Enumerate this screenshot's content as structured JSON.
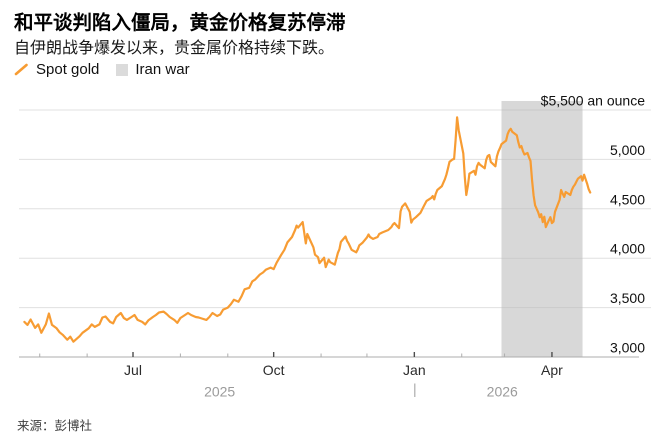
{
  "header": {
    "title": "和平谈判陷入僵局，黄金价格复苏停滞",
    "subtitle": "自伊朗战争爆发以来，贵金属价格持续下跌。"
  },
  "legend": {
    "spot_gold": "Spot gold",
    "iran_war": "Iran war"
  },
  "source": "来源：彭博社",
  "colors": {
    "spot_gold": "#F79C33",
    "iran_war_band": "#D8D8D8",
    "legend_square": "#DBDBDB",
    "grid": "#E0E0E0",
    "grid_on_band": "#C9C9C9",
    "axis": "#ACACAC",
    "tick_major": "#4D4D4D",
    "tick_minor": "#AEAEAE",
    "tick_label": "#111111",
    "month_label": "#2B2B2B",
    "year_label": "#9B9B9B"
  },
  "chart_data": {
    "type": "line",
    "title": "和平谈判陷入僵局，黄金价格复苏停滞",
    "subtitle": "自伊朗战争爆发以来，贵金属价格持续下跌。",
    "ylabel": "$5,500 an ounce",
    "y_range": [
      3000,
      5500
    ],
    "grid": true,
    "legend_position": "top-left",
    "y_ticks": [
      {
        "value": 5500,
        "label": "$5,500 an ounce"
      },
      {
        "value": 5000,
        "label": "5,000"
      },
      {
        "value": 4500,
        "label": "4,500"
      },
      {
        "value": 4000,
        "label": "4,000"
      },
      {
        "value": 3500,
        "label": "3,500"
      },
      {
        "value": 3000,
        "label": "3,000"
      }
    ],
    "x_major_ticks": [
      {
        "date": "2025-07-01",
        "label": "Jul"
      },
      {
        "date": "2025-10-01",
        "label": "Oct"
      },
      {
        "date": "2026-01-01",
        "label": "Jan"
      },
      {
        "date": "2026-04-01",
        "label": "Apr"
      }
    ],
    "x_minor_tick_dates": [
      "2025-05-01",
      "2025-06-01",
      "2025-08-01",
      "2025-09-01",
      "2025-11-01",
      "2025-12-01",
      "2026-02-01",
      "2026-03-01"
    ],
    "year_labels": [
      {
        "label": "2025",
        "divider": false
      },
      {
        "label": "2026",
        "divider": true
      }
    ],
    "band": {
      "name": "Iran war",
      "start": "2026-02-27",
      "end": "2026-04-21"
    },
    "series": [
      {
        "name": "Spot gold",
        "unit": "USD per ounce",
        "points": [
          [
            "2025-04-21",
            3355
          ],
          [
            "2025-04-23",
            3325
          ],
          [
            "2025-04-25",
            3380
          ],
          [
            "2025-04-28",
            3295
          ],
          [
            "2025-04-30",
            3330
          ],
          [
            "2025-05-02",
            3245
          ],
          [
            "2025-05-05",
            3330
          ],
          [
            "2025-05-07",
            3440
          ],
          [
            "2025-05-09",
            3325
          ],
          [
            "2025-05-12",
            3290
          ],
          [
            "2025-05-14",
            3250
          ],
          [
            "2025-05-16",
            3225
          ],
          [
            "2025-05-19",
            3175
          ],
          [
            "2025-05-21",
            3205
          ],
          [
            "2025-05-23",
            3155
          ],
          [
            "2025-05-27",
            3210
          ],
          [
            "2025-05-29",
            3245
          ],
          [
            "2025-06-02",
            3290
          ],
          [
            "2025-06-04",
            3330
          ],
          [
            "2025-06-06",
            3305
          ],
          [
            "2025-06-09",
            3330
          ],
          [
            "2025-06-11",
            3400
          ],
          [
            "2025-06-13",
            3410
          ],
          [
            "2025-06-16",
            3355
          ],
          [
            "2025-06-18",
            3340
          ],
          [
            "2025-06-20",
            3405
          ],
          [
            "2025-06-23",
            3445
          ],
          [
            "2025-06-25",
            3395
          ],
          [
            "2025-06-27",
            3375
          ],
          [
            "2025-06-30",
            3405
          ],
          [
            "2025-07-02",
            3425
          ],
          [
            "2025-07-04",
            3375
          ],
          [
            "2025-07-07",
            3355
          ],
          [
            "2025-07-09",
            3330
          ],
          [
            "2025-07-11",
            3370
          ],
          [
            "2025-07-14",
            3405
          ],
          [
            "2025-07-16",
            3425
          ],
          [
            "2025-07-18",
            3450
          ],
          [
            "2025-07-21",
            3460
          ],
          [
            "2025-07-23",
            3435
          ],
          [
            "2025-07-25",
            3405
          ],
          [
            "2025-07-28",
            3375
          ],
          [
            "2025-07-30",
            3345
          ],
          [
            "2025-08-01",
            3395
          ],
          [
            "2025-08-04",
            3425
          ],
          [
            "2025-08-06",
            3445
          ],
          [
            "2025-08-08",
            3425
          ],
          [
            "2025-08-11",
            3405
          ],
          [
            "2025-08-13",
            3400
          ],
          [
            "2025-08-15",
            3390
          ],
          [
            "2025-08-18",
            3375
          ],
          [
            "2025-08-20",
            3405
          ],
          [
            "2025-08-22",
            3445
          ],
          [
            "2025-08-25",
            3415
          ],
          [
            "2025-08-27",
            3430
          ],
          [
            "2025-08-29",
            3480
          ],
          [
            "2025-09-01",
            3500
          ],
          [
            "2025-09-03",
            3535
          ],
          [
            "2025-09-05",
            3580
          ],
          [
            "2025-09-08",
            3560
          ],
          [
            "2025-09-10",
            3615
          ],
          [
            "2025-09-12",
            3685
          ],
          [
            "2025-09-15",
            3700
          ],
          [
            "2025-09-17",
            3765
          ],
          [
            "2025-09-19",
            3785
          ],
          [
            "2025-09-22",
            3835
          ],
          [
            "2025-09-24",
            3855
          ],
          [
            "2025-09-26",
            3885
          ],
          [
            "2025-09-29",
            3905
          ],
          [
            "2025-10-01",
            3890
          ],
          [
            "2025-10-03",
            3955
          ],
          [
            "2025-10-06",
            4035
          ],
          [
            "2025-10-08",
            4085
          ],
          [
            "2025-10-10",
            4160
          ],
          [
            "2025-10-13",
            4215
          ],
          [
            "2025-10-15",
            4285
          ],
          [
            "2025-10-16",
            4330
          ],
          [
            "2025-10-17",
            4310
          ],
          [
            "2025-10-20",
            4365
          ],
          [
            "2025-10-22",
            4150
          ],
          [
            "2025-10-23",
            4245
          ],
          [
            "2025-10-27",
            4110
          ],
          [
            "2025-10-28",
            4035
          ],
          [
            "2025-10-30",
            4010
          ],
          [
            "2025-10-31",
            3950
          ],
          [
            "2025-11-03",
            4005
          ],
          [
            "2025-11-04",
            3910
          ],
          [
            "2025-11-06",
            3985
          ],
          [
            "2025-11-07",
            3960
          ],
          [
            "2025-11-10",
            3935
          ],
          [
            "2025-11-12",
            4055
          ],
          [
            "2025-11-13",
            4090
          ],
          [
            "2025-11-14",
            4165
          ],
          [
            "2025-11-17",
            4220
          ],
          [
            "2025-11-18",
            4175
          ],
          [
            "2025-11-19",
            4150
          ],
          [
            "2025-11-21",
            4085
          ],
          [
            "2025-11-24",
            4060
          ],
          [
            "2025-11-25",
            4090
          ],
          [
            "2025-11-26",
            4130
          ],
          [
            "2025-11-28",
            4155
          ],
          [
            "2025-12-01",
            4210
          ],
          [
            "2025-12-02",
            4240
          ],
          [
            "2025-12-03",
            4215
          ],
          [
            "2025-12-05",
            4195
          ],
          [
            "2025-12-08",
            4215
          ],
          [
            "2025-12-09",
            4245
          ],
          [
            "2025-12-11",
            4260
          ],
          [
            "2025-12-15",
            4285
          ],
          [
            "2025-12-17",
            4315
          ],
          [
            "2025-12-18",
            4340
          ],
          [
            "2025-12-19",
            4355
          ],
          [
            "2025-12-22",
            4305
          ],
          [
            "2025-12-23",
            4475
          ],
          [
            "2025-12-24",
            4520
          ],
          [
            "2025-12-26",
            4555
          ],
          [
            "2025-12-29",
            4470
          ],
          [
            "2025-12-30",
            4360
          ],
          [
            "2025-12-31",
            4390
          ],
          [
            "2026-01-02",
            4415
          ],
          [
            "2026-01-05",
            4460
          ],
          [
            "2026-01-06",
            4490
          ],
          [
            "2026-01-07",
            4520
          ],
          [
            "2026-01-08",
            4550
          ],
          [
            "2026-01-09",
            4580
          ],
          [
            "2026-01-12",
            4610
          ],
          [
            "2026-01-13",
            4630
          ],
          [
            "2026-01-14",
            4595
          ],
          [
            "2026-01-15",
            4650
          ],
          [
            "2026-01-16",
            4690
          ],
          [
            "2026-01-19",
            4730
          ],
          [
            "2026-01-20",
            4765
          ],
          [
            "2026-01-21",
            4800
          ],
          [
            "2026-01-22",
            4845
          ],
          [
            "2026-01-23",
            4910
          ],
          [
            "2026-01-24",
            4975
          ],
          [
            "2026-01-26",
            5000
          ],
          [
            "2026-01-27",
            5005
          ],
          [
            "2026-01-28",
            5195
          ],
          [
            "2026-01-29",
            5425
          ],
          [
            "2026-01-30",
            5295
          ],
          [
            "2026-02-02",
            5060
          ],
          [
            "2026-02-03",
            4820
          ],
          [
            "2026-02-04",
            4640
          ],
          [
            "2026-02-05",
            4735
          ],
          [
            "2026-02-06",
            4855
          ],
          [
            "2026-02-09",
            4885
          ],
          [
            "2026-02-10",
            4845
          ],
          [
            "2026-02-11",
            4930
          ],
          [
            "2026-02-12",
            4965
          ],
          [
            "2026-02-13",
            4945
          ],
          [
            "2026-02-16",
            4910
          ],
          [
            "2026-02-17",
            4995
          ],
          [
            "2026-02-18",
            5035
          ],
          [
            "2026-02-19",
            5045
          ],
          [
            "2026-02-20",
            4975
          ],
          [
            "2026-02-23",
            4930
          ],
          [
            "2026-02-24",
            5030
          ],
          [
            "2026-02-25",
            5080
          ],
          [
            "2026-02-26",
            5115
          ],
          [
            "2026-02-27",
            5155
          ],
          [
            "2026-03-02",
            5190
          ],
          [
            "2026-03-03",
            5255
          ],
          [
            "2026-03-04",
            5290
          ],
          [
            "2026-03-05",
            5310
          ],
          [
            "2026-03-06",
            5280
          ],
          [
            "2026-03-09",
            5245
          ],
          [
            "2026-03-10",
            5175
          ],
          [
            "2026-03-11",
            5120
          ],
          [
            "2026-03-12",
            5135
          ],
          [
            "2026-03-13",
            5085
          ],
          [
            "2026-03-14",
            5050
          ],
          [
            "2026-03-16",
            5065
          ],
          [
            "2026-03-17",
            5020
          ],
          [
            "2026-03-18",
            4985
          ],
          [
            "2026-03-19",
            4785
          ],
          [
            "2026-03-20",
            4635
          ],
          [
            "2026-03-21",
            4535
          ],
          [
            "2026-03-23",
            4465
          ],
          [
            "2026-03-24",
            4415
          ],
          [
            "2026-03-25",
            4445
          ],
          [
            "2026-03-26",
            4365
          ],
          [
            "2026-03-27",
            4420
          ],
          [
            "2026-03-28",
            4315
          ],
          [
            "2026-03-30",
            4385
          ],
          [
            "2026-03-31",
            4415
          ],
          [
            "2026-04-01",
            4355
          ],
          [
            "2026-04-02",
            4370
          ],
          [
            "2026-04-03",
            4470
          ],
          [
            "2026-04-06",
            4590
          ],
          [
            "2026-04-07",
            4690
          ],
          [
            "2026-04-08",
            4655
          ],
          [
            "2026-04-09",
            4620
          ],
          [
            "2026-04-10",
            4670
          ],
          [
            "2026-04-13",
            4640
          ],
          [
            "2026-04-14",
            4690
          ],
          [
            "2026-04-15",
            4725
          ],
          [
            "2026-04-16",
            4745
          ],
          [
            "2026-04-17",
            4775
          ],
          [
            "2026-04-18",
            4805
          ],
          [
            "2026-04-20",
            4830
          ],
          [
            "2026-04-21",
            4785
          ],
          [
            "2026-04-22",
            4845
          ],
          [
            "2026-04-23",
            4800
          ],
          [
            "2026-04-24",
            4755
          ],
          [
            "2026-04-25",
            4700
          ],
          [
            "2026-04-26",
            4665
          ]
        ]
      }
    ]
  }
}
